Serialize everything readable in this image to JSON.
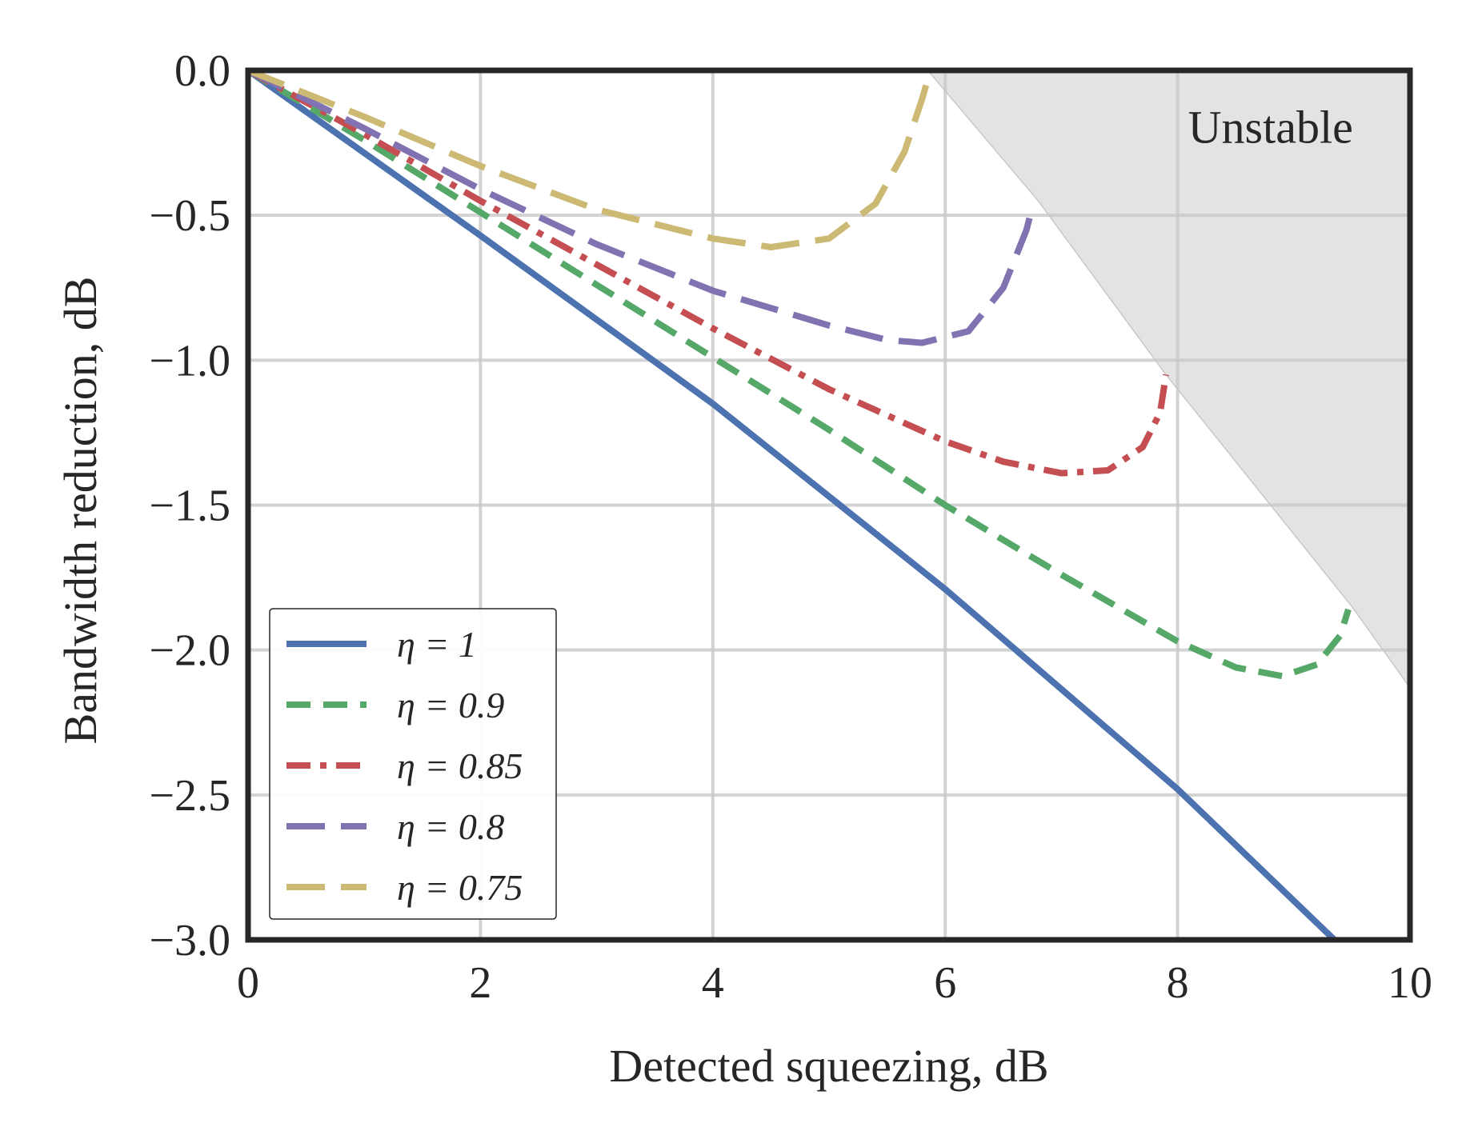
{
  "chart_data": {
    "type": "line",
    "title": "",
    "xlabel": "Detected squeezing, dB",
    "ylabel": "Bandwidth reduction, dB",
    "xlim": [
      0,
      10
    ],
    "ylim": [
      -3.0,
      0.0
    ],
    "xticks": [
      0,
      2,
      4,
      6,
      8,
      10
    ],
    "xtick_labels": [
      "0",
      "2",
      "4",
      "6",
      "8",
      "10"
    ],
    "yticks": [
      0.0,
      -0.5,
      -1.0,
      -1.5,
      -2.0,
      -2.5,
      -3.0
    ],
    "ytick_labels": [
      "0.0",
      "−0.5",
      "−1.0",
      "−1.5",
      "−2.0",
      "−2.5",
      "−3.0"
    ],
    "grid": true,
    "legend_position": "lower-left",
    "annotations": [
      {
        "text": "Unstable",
        "x": 8.8,
        "y": -0.25
      }
    ],
    "unstable_region": {
      "label": "Unstable",
      "boundary": [
        [
          5.85,
          0.0
        ],
        [
          6.8,
          -0.45
        ],
        [
          7.9,
          -1.05
        ],
        [
          9.5,
          -1.85
        ],
        [
          10.0,
          -2.13
        ]
      ],
      "color": "#e3e3e3"
    },
    "series": [
      {
        "name": "η = 1",
        "label": "η = 1",
        "color": "#4c72b0",
        "style": "solid",
        "x": [
          0,
          2,
          4,
          6,
          8,
          9.35
        ],
        "y": [
          0.0,
          -0.57,
          -1.15,
          -1.79,
          -2.48,
          -3.0
        ]
      },
      {
        "name": "η = 0.9",
        "label": "η = 0.9",
        "color": "#55a868",
        "style": "dashed",
        "x": [
          0,
          1,
          2,
          3,
          4,
          5,
          6,
          7,
          8,
          8.5,
          8.9,
          9.2,
          9.4,
          9.47
        ],
        "y": [
          0.0,
          -0.24,
          -0.49,
          -0.74,
          -0.99,
          -1.24,
          -1.5,
          -1.74,
          -1.97,
          -2.06,
          -2.09,
          -2.05,
          -1.95,
          -1.86
        ]
      },
      {
        "name": "η = 0.85",
        "label": "η = 0.85",
        "color": "#c44e52",
        "style": "dashdot",
        "x": [
          0,
          1,
          2,
          3,
          4,
          5,
          6,
          6.5,
          7.0,
          7.4,
          7.7,
          7.85,
          7.9
        ],
        "y": [
          0.0,
          -0.22,
          -0.45,
          -0.67,
          -0.89,
          -1.1,
          -1.28,
          -1.35,
          -1.39,
          -1.38,
          -1.3,
          -1.18,
          -1.05
        ]
      },
      {
        "name": "η = 0.8",
        "label": "η = 0.8",
        "color": "#8172b2",
        "style": "longdash",
        "x": [
          0,
          1,
          2,
          3,
          4,
          5,
          5.5,
          5.8,
          6.2,
          6.5,
          6.7,
          6.75
        ],
        "y": [
          0.0,
          -0.2,
          -0.41,
          -0.6,
          -0.76,
          -0.88,
          -0.93,
          -0.94,
          -0.9,
          -0.75,
          -0.55,
          -0.47
        ]
      },
      {
        "name": "η = 0.75",
        "label": "η = 0.75",
        "color": "#ccb974",
        "style": "longdash",
        "x": [
          0,
          1,
          2,
          3,
          4,
          4.5,
          5.0,
          5.4,
          5.65,
          5.8,
          5.85
        ],
        "y": [
          0.0,
          -0.16,
          -0.33,
          -0.48,
          -0.58,
          -0.61,
          -0.58,
          -0.46,
          -0.28,
          -0.1,
          -0.03
        ]
      }
    ]
  }
}
